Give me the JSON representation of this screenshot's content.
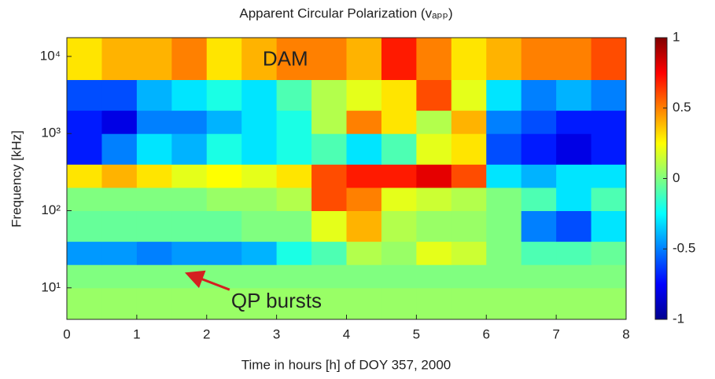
{
  "chart_data": {
    "type": "heatmap",
    "title": "Apparent Circular Polarization (vₐₚₚ)",
    "x_label": "Time in hours [h] of DOY 357, 2000",
    "y_label": "Frequency [kHz]",
    "x": [
      0,
      0.5,
      1,
      1.5,
      2,
      2.5,
      3,
      3.5,
      4,
      4.5,
      5,
      5.5,
      6,
      6.5,
      7,
      7.5,
      8
    ],
    "y": [
      3.9,
      10,
      20,
      40,
      100,
      200,
      400,
      1000,
      2000,
      5000,
      17500
    ],
    "values": [
      [
        0.05,
        0.05,
        0.05,
        0.05,
        0.05,
        0.05,
        0.05,
        0.05,
        0.05,
        0.05,
        0.05,
        0.05,
        0.05,
        0.05,
        0.05,
        0.05
      ],
      [
        0,
        0,
        0,
        0,
        0,
        0,
        0,
        0,
        0,
        0,
        0,
        0,
        0,
        0,
        0,
        0
      ],
      [
        -0.45,
        -0.45,
        -0.5,
        -0.45,
        -0.45,
        -0.4,
        -0.2,
        -0.1,
        0.1,
        0.05,
        0.2,
        0.15,
        0,
        -0.1,
        -0.1,
        -0.05
      ],
      [
        -0.05,
        -0.05,
        -0.05,
        -0.05,
        -0.05,
        0,
        0,
        0.2,
        0.4,
        0.1,
        0.05,
        0.05,
        0,
        -0.5,
        -0.6,
        -0.3
      ],
      [
        0,
        0,
        0,
        0,
        0.05,
        0.05,
        0.1,
        0.6,
        0.5,
        0.2,
        0.15,
        0.1,
        0,
        -0.1,
        -0.3,
        -0.1
      ],
      [
        0.3,
        0.4,
        0.3,
        0.2,
        0.25,
        0.2,
        0.3,
        0.6,
        0.7,
        0.7,
        0.8,
        0.6,
        -0.3,
        -0.4,
        -0.3,
        -0.3
      ],
      [
        -0.7,
        -0.5,
        -0.3,
        -0.4,
        -0.2,
        -0.3,
        -0.2,
        -0.1,
        -0.3,
        -0.1,
        0.2,
        0.3,
        -0.6,
        -0.7,
        -0.8,
        -0.7
      ],
      [
        -0.7,
        -0.8,
        -0.5,
        -0.5,
        -0.4,
        -0.3,
        -0.2,
        0.1,
        0.5,
        0.3,
        0.1,
        0.4,
        -0.5,
        -0.6,
        -0.7,
        -0.7
      ],
      [
        -0.6,
        -0.6,
        -0.4,
        -0.3,
        -0.2,
        -0.3,
        -0.1,
        0.1,
        0.2,
        0.3,
        0.6,
        0.2,
        -0.3,
        -0.5,
        -0.4,
        -0.5
      ],
      [
        0.3,
        0.4,
        0.4,
        0.5,
        0.3,
        0.4,
        0.5,
        0.5,
        0.4,
        0.7,
        0.5,
        0.3,
        0.4,
        0.5,
        0.5,
        0.6
      ]
    ],
    "xlim": [
      0,
      8
    ],
    "xticks": [
      0,
      1,
      2,
      3,
      4,
      5,
      6,
      7,
      8
    ],
    "ylim": [
      3.9,
      17500
    ],
    "y_scale": "log",
    "yticks": [
      {
        "value": 10,
        "label": "10¹"
      },
      {
        "value": 100,
        "label": "10²"
      },
      {
        "value": 1000,
        "label": "10³"
      },
      {
        "value": 10000,
        "label": "10⁴"
      }
    ],
    "colormap": "jet",
    "zlim": [
      -1,
      1
    ],
    "zticks": [
      -1,
      -0.5,
      0,
      0.5,
      1
    ],
    "annotations": [
      {
        "text": "DAM",
        "x": 2.8,
        "y": 9000,
        "color": "#000000"
      },
      {
        "text": "QP bursts",
        "x": 2.35,
        "y": 6.5,
        "color": "#d42020",
        "arrow_to": [
          1.75,
          15
        ]
      }
    ]
  }
}
